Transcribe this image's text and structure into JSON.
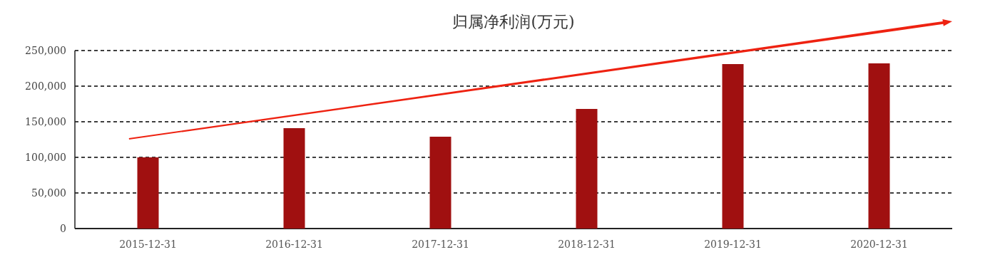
{
  "chart_data": {
    "type": "bar",
    "title": "归属净利润(万元)",
    "categories": [
      "2015-12-31",
      "2016-12-31",
      "2017-12-31",
      "2018-12-31",
      "2019-12-31",
      "2020-12-31"
    ],
    "values": [
      100000,
      141000,
      129000,
      168000,
      231000,
      232000
    ],
    "color": "#a01010",
    "ylim": [
      0,
      250000
    ],
    "yticks": [
      {
        "value": 0,
        "label": "0"
      },
      {
        "value": 50000,
        "label": "50,000"
      },
      {
        "value": 100000,
        "label": "100,000"
      },
      {
        "value": 150000,
        "label": "150,000"
      },
      {
        "value": 200000,
        "label": "200,000"
      },
      {
        "value": 250000,
        "label": "250,000"
      }
    ],
    "grid": "y"
  }
}
